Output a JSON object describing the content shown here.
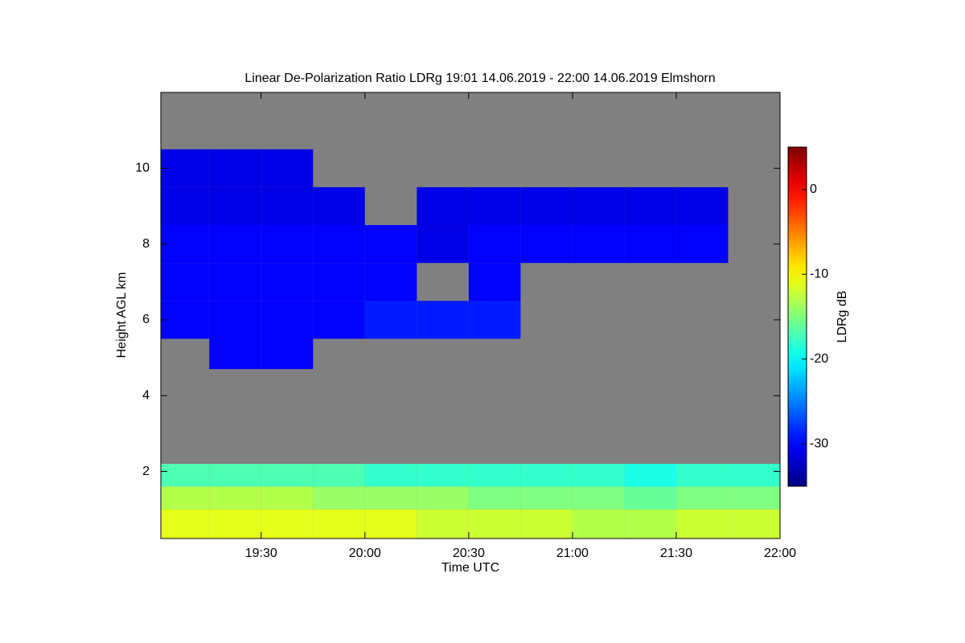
{
  "chart_data": {
    "type": "heatmap",
    "title": "Linear De-Polarization Ratio LDRg   19:01 14.06.2019 - 22:00 14.06.2019 Elmshorn",
    "xlabel": "Time UTC",
    "ylabel": "Height AGL km",
    "colorbar_label": "LDRg dB",
    "colormap": "jet",
    "missing_color": "#808080",
    "xlim": [
      1141,
      1320
    ],
    "xticks": [
      {
        "value": 1170,
        "label": "19:30"
      },
      {
        "value": 1200,
        "label": "20:00"
      },
      {
        "value": 1230,
        "label": "20:30"
      },
      {
        "value": 1260,
        "label": "21:00"
      },
      {
        "value": 1290,
        "label": "21:30"
      },
      {
        "value": 1320,
        "label": "22:00"
      }
    ],
    "ylim": [
      0.23,
      12
    ],
    "yticks": [
      2,
      4,
      6,
      8,
      10
    ],
    "zlim": [
      -35,
      5
    ],
    "zticks": [
      0,
      -10,
      -20,
      -30
    ],
    "x": [
      1141,
      1155,
      1170,
      1185,
      1200,
      1215,
      1230,
      1245,
      1260,
      1275,
      1290,
      1305,
      1320
    ],
    "y": [
      0.23,
      1,
      1.6,
      2.2,
      4.7,
      5.5,
      6.5,
      7.5,
      8.5,
      9.5,
      10.5,
      12
    ],
    "z": [
      [
        -11,
        -11,
        -11,
        -11,
        -11,
        -12,
        -12,
        -12,
        -13,
        -13,
        -12,
        -12
      ],
      [
        -13,
        -13,
        -13,
        -14,
        -14,
        -14,
        -15,
        -15,
        -15,
        -16,
        -15,
        -15
      ],
      [
        -17,
        -17,
        -17,
        -17,
        -18,
        -18,
        -18,
        -18,
        -18,
        -19,
        -18,
        -18
      ],
      [
        null,
        null,
        null,
        null,
        null,
        null,
        null,
        null,
        null,
        null,
        null,
        null
      ],
      [
        null,
        -30,
        -30,
        null,
        null,
        null,
        null,
        null,
        null,
        null,
        null,
        null
      ],
      [
        -30,
        -30,
        -30,
        -30,
        -29,
        -29,
        -29,
        null,
        null,
        null,
        null,
        null
      ],
      [
        -30,
        -30,
        -30,
        -30,
        -30,
        null,
        -30,
        null,
        null,
        null,
        null,
        null
      ],
      [
        -30,
        -30,
        -30,
        -30,
        -30,
        -31,
        -30,
        -30,
        -30,
        -30,
        -30,
        null
      ],
      [
        -31,
        -31,
        -31,
        -31,
        null,
        -31,
        -31,
        -31,
        -31,
        -31,
        -31,
        null
      ],
      [
        -31,
        -31,
        -31,
        null,
        null,
        null,
        null,
        null,
        null,
        null,
        null,
        null
      ],
      [
        null,
        null,
        null,
        null,
        null,
        null,
        null,
        null,
        null,
        null,
        null,
        null
      ]
    ]
  }
}
